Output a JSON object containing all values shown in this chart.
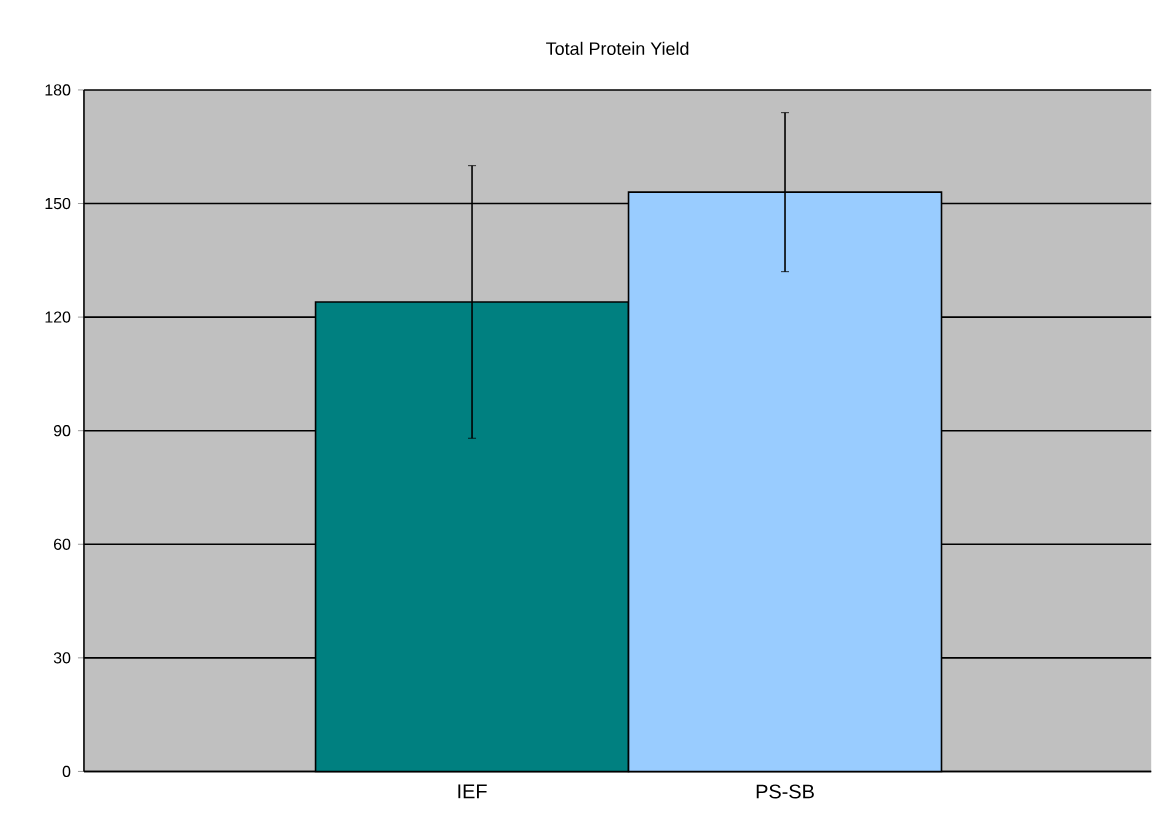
{
  "chart_data": {
    "type": "bar",
    "title": "Total Protein Yield",
    "categories": [
      "IEF",
      "PS-SB"
    ],
    "values": [
      124,
      153
    ],
    "colors": [
      "#008080",
      "#99ccff"
    ],
    "errors": [
      36,
      21
    ],
    "ylim": [
      0,
      180
    ],
    "yticks": [
      0,
      30,
      60,
      90,
      120,
      150,
      180
    ],
    "grid": "y"
  }
}
